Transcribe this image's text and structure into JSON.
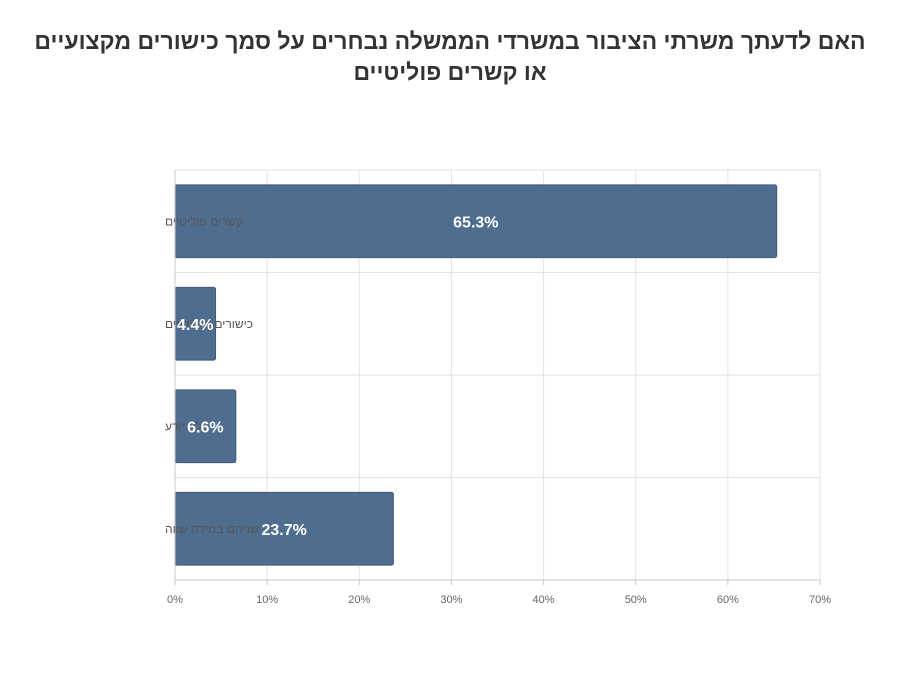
{
  "chart_data": {
    "type": "bar",
    "orientation": "horizontal",
    "title": "האם לדעתך משרתי הציבור במשרדי הממשלה נבחרים על סמך כישורים מקצועיים או קשרים פוליטיים",
    "categories": [
      "קשרים פוליטיים",
      "כישורים מקצועיים",
      "לא יודע",
      "שניהם במידה שווה"
    ],
    "values": [
      65.3,
      4.4,
      6.6,
      23.7
    ],
    "data_labels": [
      "65.3%",
      "4.4%",
      "6.6%",
      "23.7%"
    ],
    "xlim": [
      0,
      70
    ],
    "x_ticks": [
      0,
      10,
      20,
      30,
      40,
      50,
      60,
      70
    ],
    "x_tick_labels": [
      "0%",
      "10%",
      "20%",
      "30%",
      "40%",
      "50%",
      "60%",
      "70%"
    ],
    "xlabel": "",
    "ylabel": "",
    "grid": true,
    "legend": "none",
    "colors": {
      "bar": "#4f6d8f",
      "bar_edge": "#3f5b7a",
      "grid": "#e3e3e3",
      "axis": "#c8c8c8",
      "tick_text": "#666666",
      "label_text": "#555555",
      "data_label": "#ffffff",
      "title": "#333333"
    }
  }
}
